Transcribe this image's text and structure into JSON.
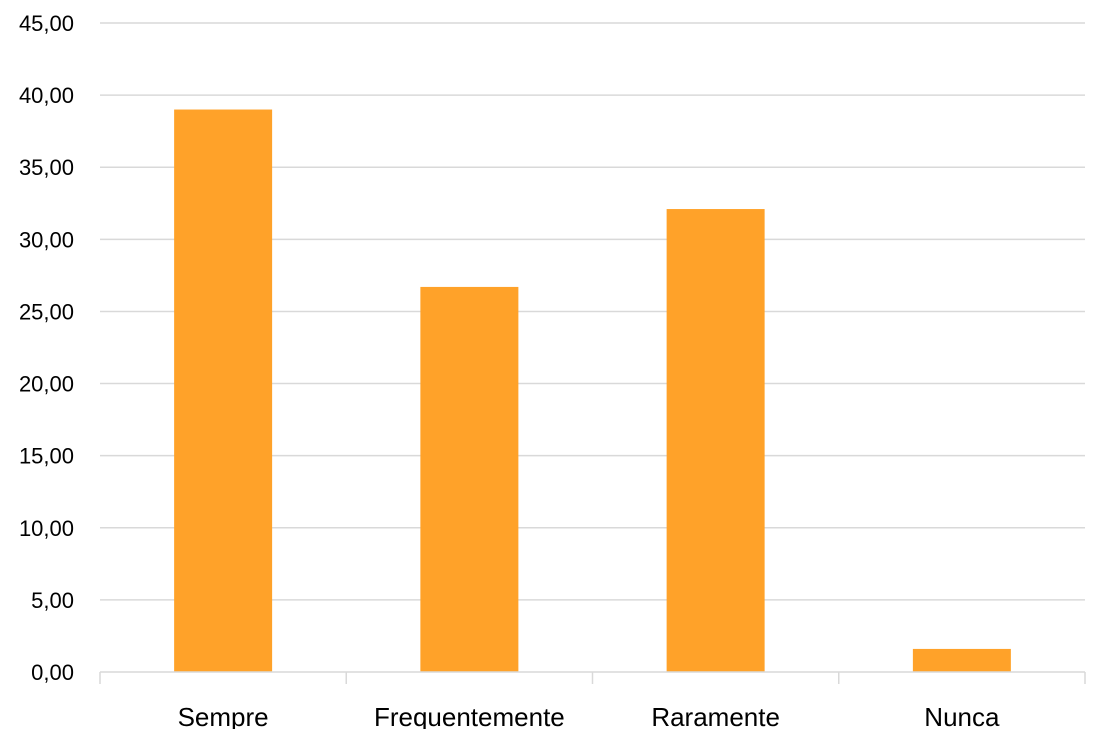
{
  "chart_data": {
    "type": "bar",
    "categories": [
      "Sempre",
      "Frequentemente",
      "Raramente",
      "Nunca"
    ],
    "values": [
      39.0,
      26.7,
      32.1,
      1.6
    ],
    "ylim": [
      0,
      45
    ],
    "ytick_step": 5,
    "ytick_labels": [
      "0,00",
      "5,00",
      "10,00",
      "15,00",
      "20,00",
      "25,00",
      "30,00",
      "35,00",
      "40,00",
      "45,00"
    ],
    "grid": true,
    "legend": "none",
    "bar_color": "#FFA229",
    "grid_color": "#D9D9D9"
  }
}
